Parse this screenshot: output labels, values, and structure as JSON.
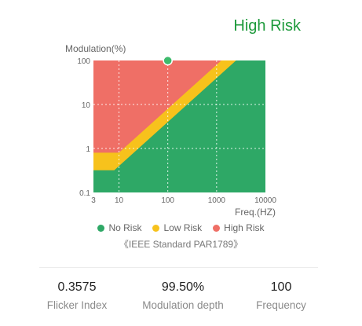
{
  "risk_label": "High Risk",
  "colors": {
    "no_risk": "#2ea866",
    "low_risk": "#f7c21c",
    "high_risk": "#ef6f66",
    "risk_label": "#1e9a3c",
    "marker": "#3dbb6c"
  },
  "chart_data": {
    "type": "area",
    "ylabel": "Modulation(%)",
    "xlabel": "Freq.(HZ)",
    "x_scale": "log",
    "y_scale": "log",
    "xlim": [
      3,
      10000
    ],
    "ylim": [
      0.1,
      100
    ],
    "x_ticks": [
      "3",
      "10",
      "100",
      "1000",
      "10000"
    ],
    "y_ticks": [
      "100",
      "10",
      "1",
      "0.1"
    ],
    "grid": true,
    "regions": [
      {
        "name": "No Risk",
        "boundary": "below low-risk line: 0.32% at 3–8 Hz, then 0.04 × f %, reaching 100% at 2500 Hz"
      },
      {
        "name": "Low Risk",
        "boundary": "band between 0.04 × f % (lower) and 0.08 × f % (upper), flat 0.8% below ~10 Hz"
      },
      {
        "name": "High Risk",
        "boundary": "above the low-risk band"
      }
    ],
    "low_line": [
      [
        3,
        0.32
      ],
      [
        8,
        0.32
      ],
      [
        2500,
        100
      ]
    ],
    "high_line": [
      [
        3,
        0.8
      ],
      [
        10,
        0.8
      ],
      [
        1250,
        100
      ]
    ],
    "point": {
      "x": 100,
      "y": 99.5
    }
  },
  "legend": [
    {
      "label": "No Risk",
      "color": "#2ea866"
    },
    {
      "label": "Low Risk",
      "color": "#f7c21c"
    },
    {
      "label": "High Risk",
      "color": "#ef6f66"
    }
  ],
  "standard": "《IEEE Standard PAR1789》",
  "metrics": [
    {
      "value": "0.3575",
      "label": "Flicker Index"
    },
    {
      "value": "99.50%",
      "label": "Modulation depth"
    },
    {
      "value": "100",
      "label": "Frequency"
    }
  ]
}
